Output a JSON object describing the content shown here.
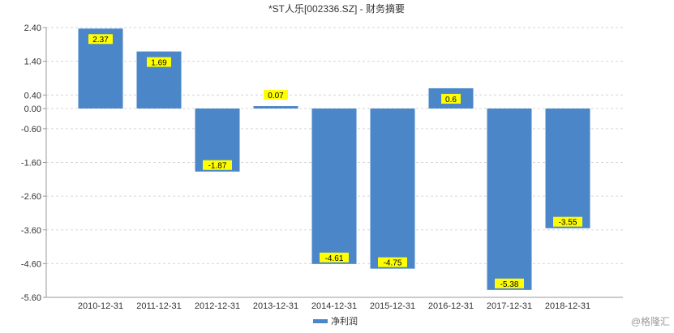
{
  "chart_data": {
    "type": "bar",
    "title": "*ST人乐[002336.SZ] - 财务摘要",
    "categories": [
      "2010-12-31",
      "2011-12-31",
      "2012-12-31",
      "2013-12-31",
      "2014-12-31",
      "2015-12-31",
      "2016-12-31",
      "2017-12-31",
      "2018-12-31"
    ],
    "series": [
      {
        "name": "净利润",
        "values": [
          2.37,
          1.69,
          -1.87,
          0.07,
          -4.61,
          -4.75,
          0.6,
          -5.38,
          -3.55
        ]
      }
    ],
    "data_labels": [
      "2.37",
      "1.69",
      "-1.87",
      "0.07",
      "-4.61",
      "-4.75",
      "0.6",
      "-5.38",
      "-3.55"
    ],
    "yticks": [
      2.4,
      1.4,
      0.4,
      0.0,
      -0.6,
      -1.6,
      -2.6,
      -3.6,
      -4.6,
      -5.6
    ],
    "ytick_labels": [
      "2.40",
      "1.40",
      "0.40",
      "0.00",
      "-0.60",
      "-1.60",
      "-2.60",
      "-3.60",
      "-4.60",
      "-5.60"
    ],
    "ylim": [
      -5.6,
      2.4
    ],
    "grid": true,
    "legend_position": "bottom-center",
    "colors": {
      "bar": "#4a86c8",
      "label_bg": "#ffff00",
      "grid": "#d6d6d6",
      "axis": "#999999"
    }
  },
  "watermark": "@格隆汇"
}
